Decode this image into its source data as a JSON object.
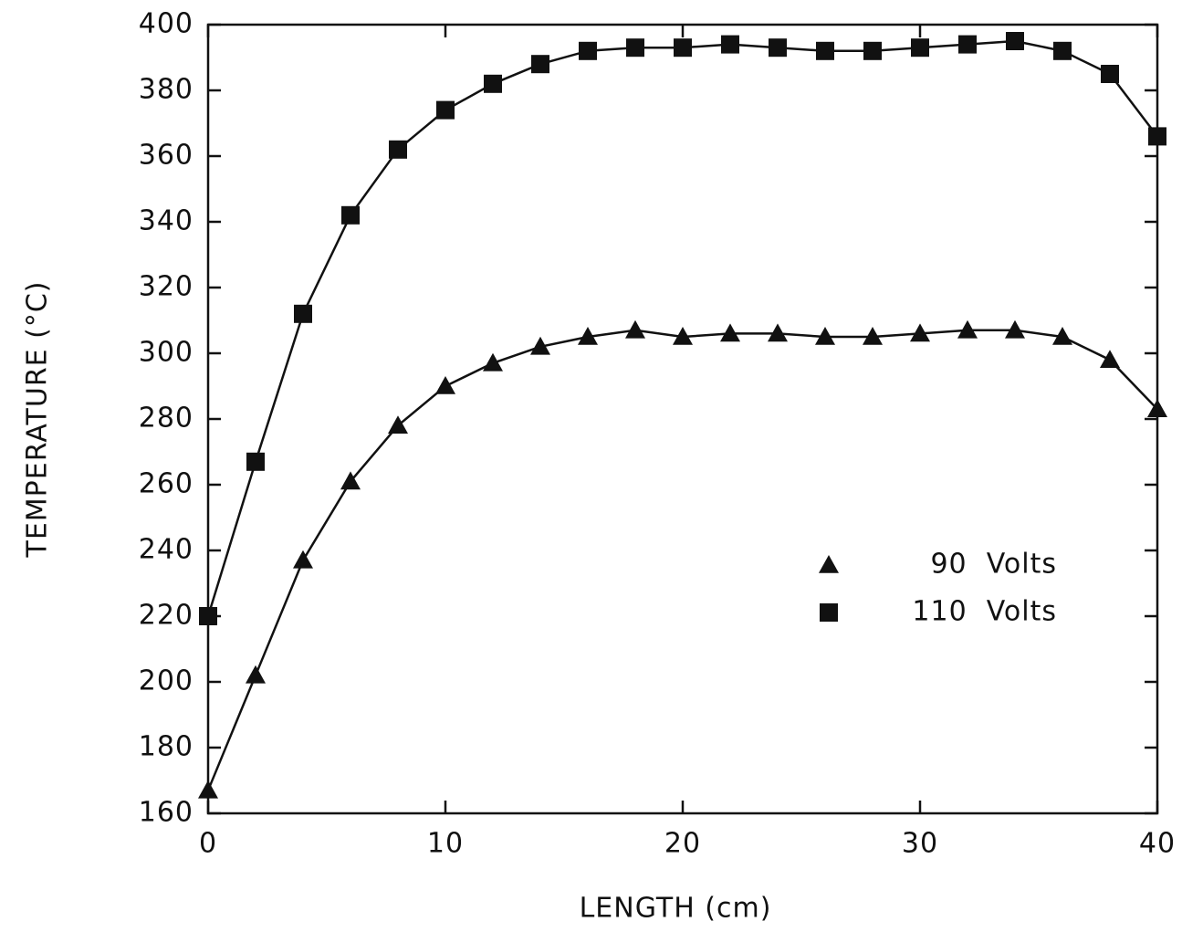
{
  "chart_data": {
    "type": "line",
    "x_label": "LENGTH  (cm)",
    "y_label": "TEMPERATURE  (°C)",
    "x": [
      0,
      2,
      4,
      6,
      8,
      10,
      12,
      14,
      16,
      18,
      20,
      22,
      24,
      26,
      28,
      30,
      32,
      34,
      36,
      38,
      40
    ],
    "series": [
      {
        "name": "90  Volts",
        "color": "#111111",
        "marker": "triangle",
        "values": [
          167,
          202,
          237,
          261,
          278,
          290,
          297,
          302,
          305,
          307,
          305,
          306,
          306,
          305,
          305,
          306,
          307,
          307,
          305,
          298,
          283
        ]
      },
      {
        "name": "110  Volts",
        "color": "#111111",
        "marker": "square",
        "values": [
          220,
          267,
          312,
          342,
          362,
          374,
          382,
          388,
          392,
          393,
          393,
          394,
          393,
          392,
          392,
          393,
          394,
          395,
          392,
          385,
          366
        ]
      }
    ],
    "xlim": [
      0,
      40
    ],
    "xticks": [
      0,
      10,
      20,
      30,
      40
    ],
    "ylim": [
      160,
      400
    ],
    "yticks": [
      160,
      180,
      200,
      220,
      240,
      260,
      280,
      300,
      320,
      340,
      360,
      380,
      400
    ],
    "grid": false,
    "legend": "right"
  }
}
